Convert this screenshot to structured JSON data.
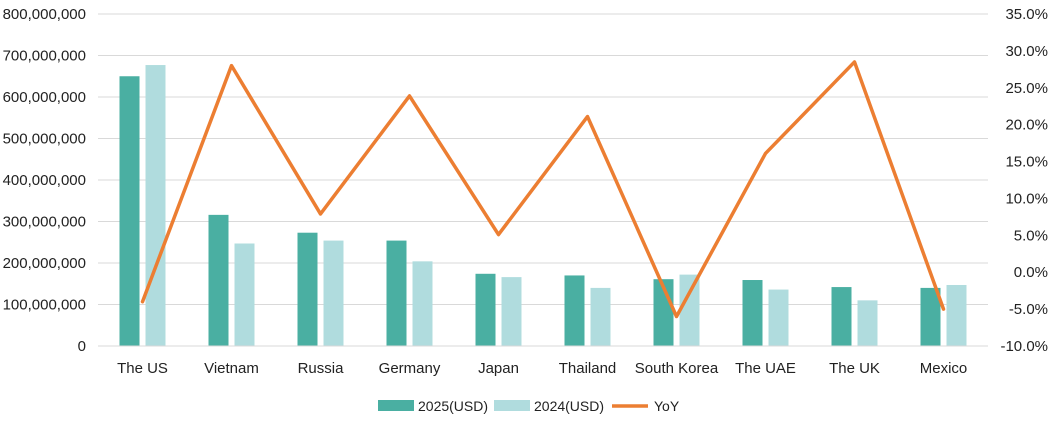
{
  "chart_data": {
    "type": "bar",
    "categories": [
      "The US",
      "Vietnam",
      "Russia",
      "Germany",
      "Japan",
      "Thailand",
      "South Korea",
      "The UAE",
      "The UK",
      "Mexico"
    ],
    "series": [
      {
        "name": "2025(USD)",
        "type": "bar",
        "axis": "left",
        "color": "#4aafa2",
        "values": [
          650000000,
          316000000,
          273000000,
          254000000,
          174000000,
          170000000,
          161000000,
          159000000,
          142000000,
          140000000
        ]
      },
      {
        "name": "2024(USD)",
        "type": "bar",
        "axis": "left",
        "color": "#b0dcde",
        "values": [
          677000000,
          247000000,
          254000000,
          204000000,
          166000000,
          140000000,
          172000000,
          136000000,
          110000000,
          147000000
        ]
      },
      {
        "name": "YoY",
        "type": "line",
        "axis": "right",
        "color": "#ec7e32",
        "values": [
          -4.0,
          28.0,
          7.9,
          23.9,
          5.1,
          21.1,
          -6.0,
          16.1,
          28.5,
          -5.0
        ]
      }
    ],
    "y_left": {
      "min": 0,
      "max": 800000000,
      "ticks": [
        "0",
        "100,000,000",
        "200,000,000",
        "300,000,000",
        "400,000,000",
        "500,000,000",
        "600,000,000",
        "700,000,000",
        "800,000,000"
      ]
    },
    "y_right": {
      "min": -10,
      "max": 35,
      "ticks": [
        "-10.0%",
        "-5.0%",
        "0.0%",
        "5.0%",
        "10.0%",
        "15.0%",
        "20.0%",
        "25.0%",
        "30.0%",
        "35.0%"
      ]
    },
    "grid": true,
    "legend_position": "bottom",
    "legend": [
      "2025(USD)",
      "2024(USD)",
      "YoY"
    ]
  }
}
